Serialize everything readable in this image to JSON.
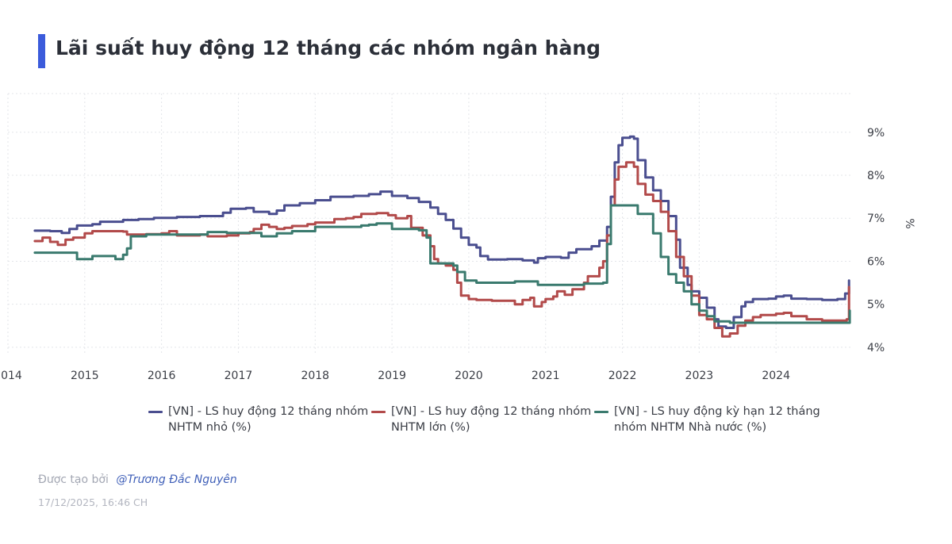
{
  "title": "Lãi suất huy động 12 tháng các nhóm ngân hàng",
  "accent_color": "#3b5bdb",
  "credit": {
    "prefix": "Được tạo bởi",
    "author": "@Trương Đắc Nguyên"
  },
  "timestamp": "17/12/2025, 16:46 CH",
  "chart_data": {
    "type": "line",
    "title": "Lãi suất huy động 12 tháng các nhóm ngân hàng",
    "xlabel": "",
    "ylabel": "%",
    "x_ticks": [
      "2014",
      "2015",
      "2016",
      "2017",
      "2018",
      "2019",
      "2020",
      "2021",
      "2022",
      "2023",
      "2024"
    ],
    "y_ticks": [
      "4%",
      "5%",
      "6%",
      "7%",
      "8%",
      "9%"
    ],
    "xlim": [
      2014.0,
      2025.0
    ],
    "ylim": [
      3.85,
      9.9
    ],
    "grid": true,
    "legend_position": "bottom",
    "series": [
      {
        "name": "[VN] - LS huy động 12 tháng nhóm NHTM nhỏ (%)",
        "color": "#4a4e8f",
        "points": [
          [
            2014.35,
            6.71
          ],
          [
            2014.55,
            6.7
          ],
          [
            2014.7,
            6.66
          ],
          [
            2014.8,
            6.75
          ],
          [
            2014.9,
            6.83
          ],
          [
            2015.1,
            6.86
          ],
          [
            2015.2,
            6.92
          ],
          [
            2015.5,
            6.96
          ],
          [
            2015.7,
            6.98
          ],
          [
            2015.9,
            7.01
          ],
          [
            2016.2,
            7.03
          ],
          [
            2016.5,
            7.05
          ],
          [
            2016.8,
            7.13
          ],
          [
            2016.9,
            7.22
          ],
          [
            2017.1,
            7.24
          ],
          [
            2017.2,
            7.15
          ],
          [
            2017.4,
            7.1
          ],
          [
            2017.5,
            7.18
          ],
          [
            2017.6,
            7.3
          ],
          [
            2017.8,
            7.35
          ],
          [
            2018.0,
            7.42
          ],
          [
            2018.2,
            7.5
          ],
          [
            2018.5,
            7.52
          ],
          [
            2018.7,
            7.56
          ],
          [
            2018.85,
            7.62
          ],
          [
            2019.0,
            7.52
          ],
          [
            2019.2,
            7.47
          ],
          [
            2019.35,
            7.38
          ],
          [
            2019.5,
            7.25
          ],
          [
            2019.6,
            7.1
          ],
          [
            2019.7,
            6.96
          ],
          [
            2019.8,
            6.76
          ],
          [
            2019.9,
            6.55
          ],
          [
            2020.0,
            6.38
          ],
          [
            2020.1,
            6.32
          ],
          [
            2020.15,
            6.12
          ],
          [
            2020.25,
            6.04
          ],
          [
            2020.5,
            6.05
          ],
          [
            2020.7,
            6.02
          ],
          [
            2020.85,
            5.97
          ],
          [
            2020.9,
            6.07
          ],
          [
            2021.0,
            6.1
          ],
          [
            2021.2,
            6.08
          ],
          [
            2021.3,
            6.2
          ],
          [
            2021.4,
            6.28
          ],
          [
            2021.6,
            6.35
          ],
          [
            2021.7,
            6.48
          ],
          [
            2021.8,
            6.8
          ],
          [
            2021.85,
            7.5
          ],
          [
            2021.9,
            8.3
          ],
          [
            2021.95,
            8.7
          ],
          [
            2022.0,
            8.87
          ],
          [
            2022.1,
            8.9
          ],
          [
            2022.15,
            8.85
          ],
          [
            2022.2,
            8.35
          ],
          [
            2022.3,
            7.95
          ],
          [
            2022.4,
            7.65
          ],
          [
            2022.5,
            7.4
          ],
          [
            2022.6,
            7.05
          ],
          [
            2022.7,
            6.5
          ],
          [
            2022.75,
            5.85
          ],
          [
            2022.85,
            5.45
          ],
          [
            2022.9,
            5.3
          ],
          [
            2023.0,
            5.15
          ],
          [
            2023.1,
            4.92
          ],
          [
            2023.2,
            4.65
          ],
          [
            2023.25,
            4.48
          ],
          [
            2023.35,
            4.45
          ],
          [
            2023.45,
            4.7
          ],
          [
            2023.55,
            4.95
          ],
          [
            2023.6,
            5.05
          ],
          [
            2023.7,
            5.12
          ],
          [
            2023.9,
            5.13
          ],
          [
            2024.0,
            5.18
          ],
          [
            2024.1,
            5.2
          ],
          [
            2024.2,
            5.13
          ],
          [
            2024.4,
            5.12
          ],
          [
            2024.6,
            5.1
          ],
          [
            2024.8,
            5.12
          ],
          [
            2024.9,
            5.25
          ],
          [
            2024.95,
            5.55
          ]
        ]
      },
      {
        "name": "[VN] - LS huy động 12 tháng nhóm NHTM lớn (%)",
        "color": "#b24a4a",
        "points": [
          [
            2014.35,
            6.47
          ],
          [
            2014.45,
            6.55
          ],
          [
            2014.55,
            6.45
          ],
          [
            2014.65,
            6.38
          ],
          [
            2014.75,
            6.5
          ],
          [
            2014.85,
            6.55
          ],
          [
            2014.95,
            6.55
          ],
          [
            2015.0,
            6.65
          ],
          [
            2015.1,
            6.7
          ],
          [
            2015.5,
            6.69
          ],
          [
            2015.55,
            6.62
          ],
          [
            2015.8,
            6.63
          ],
          [
            2016.0,
            6.65
          ],
          [
            2016.1,
            6.7
          ],
          [
            2016.2,
            6.6
          ],
          [
            2016.5,
            6.62
          ],
          [
            2016.6,
            6.58
          ],
          [
            2016.85,
            6.6
          ],
          [
            2017.0,
            6.65
          ],
          [
            2017.15,
            6.68
          ],
          [
            2017.2,
            6.75
          ],
          [
            2017.3,
            6.85
          ],
          [
            2017.4,
            6.8
          ],
          [
            2017.5,
            6.75
          ],
          [
            2017.6,
            6.78
          ],
          [
            2017.7,
            6.82
          ],
          [
            2017.9,
            6.86
          ],
          [
            2018.0,
            6.9
          ],
          [
            2018.2,
            6.9
          ],
          [
            2018.25,
            6.98
          ],
          [
            2018.4,
            7.0
          ],
          [
            2018.5,
            7.03
          ],
          [
            2018.6,
            7.1
          ],
          [
            2018.8,
            7.12
          ],
          [
            2018.95,
            7.07
          ],
          [
            2019.05,
            7.0
          ],
          [
            2019.2,
            7.05
          ],
          [
            2019.25,
            6.78
          ],
          [
            2019.4,
            6.6
          ],
          [
            2019.5,
            6.35
          ],
          [
            2019.55,
            6.05
          ],
          [
            2019.6,
            5.95
          ],
          [
            2019.7,
            5.9
          ],
          [
            2019.8,
            5.8
          ],
          [
            2019.85,
            5.5
          ],
          [
            2019.9,
            5.2
          ],
          [
            2020.0,
            5.12
          ],
          [
            2020.1,
            5.1
          ],
          [
            2020.3,
            5.08
          ],
          [
            2020.6,
            5.0
          ],
          [
            2020.7,
            5.1
          ],
          [
            2020.8,
            5.15
          ],
          [
            2020.85,
            4.95
          ],
          [
            2020.95,
            5.05
          ],
          [
            2021.0,
            5.12
          ],
          [
            2021.1,
            5.18
          ],
          [
            2021.15,
            5.3
          ],
          [
            2021.25,
            5.22
          ],
          [
            2021.35,
            5.35
          ],
          [
            2021.5,
            5.5
          ],
          [
            2021.55,
            5.65
          ],
          [
            2021.7,
            5.85
          ],
          [
            2021.75,
            6.0
          ],
          [
            2021.8,
            6.6
          ],
          [
            2021.85,
            7.3
          ],
          [
            2021.9,
            7.9
          ],
          [
            2021.95,
            8.2
          ],
          [
            2022.05,
            8.3
          ],
          [
            2022.15,
            8.2
          ],
          [
            2022.2,
            7.8
          ],
          [
            2022.3,
            7.55
          ],
          [
            2022.4,
            7.4
          ],
          [
            2022.5,
            7.15
          ],
          [
            2022.6,
            6.7
          ],
          [
            2022.7,
            6.1
          ],
          [
            2022.8,
            5.65
          ],
          [
            2022.9,
            5.2
          ],
          [
            2023.0,
            4.75
          ],
          [
            2023.1,
            4.65
          ],
          [
            2023.2,
            4.45
          ],
          [
            2023.3,
            4.25
          ],
          [
            2023.4,
            4.32
          ],
          [
            2023.5,
            4.5
          ],
          [
            2023.6,
            4.62
          ],
          [
            2023.7,
            4.7
          ],
          [
            2023.8,
            4.75
          ],
          [
            2024.0,
            4.78
          ],
          [
            2024.1,
            4.8
          ],
          [
            2024.2,
            4.72
          ],
          [
            2024.4,
            4.65
          ],
          [
            2024.6,
            4.62
          ],
          [
            2024.8,
            4.62
          ],
          [
            2024.92,
            4.65
          ],
          [
            2024.95,
            5.4
          ]
        ]
      },
      {
        "name": "[VN] - LS huy động kỳ hạn 12 tháng nhóm NHTM Nhà nước (%)",
        "color": "#3a7a6e",
        "points": [
          [
            2014.35,
            6.2
          ],
          [
            2014.85,
            6.2
          ],
          [
            2014.9,
            6.05
          ],
          [
            2015.0,
            6.05
          ],
          [
            2015.1,
            6.12
          ],
          [
            2015.4,
            6.05
          ],
          [
            2015.5,
            6.15
          ],
          [
            2015.55,
            6.3
          ],
          [
            2015.6,
            6.58
          ],
          [
            2015.8,
            6.62
          ],
          [
            2016.5,
            6.62
          ],
          [
            2016.6,
            6.68
          ],
          [
            2016.85,
            6.66
          ],
          [
            2017.3,
            6.58
          ],
          [
            2017.5,
            6.65
          ],
          [
            2017.7,
            6.7
          ],
          [
            2018.0,
            6.8
          ],
          [
            2018.6,
            6.83
          ],
          [
            2018.7,
            6.85
          ],
          [
            2018.8,
            6.88
          ],
          [
            2019.0,
            6.75
          ],
          [
            2019.35,
            6.72
          ],
          [
            2019.45,
            6.55
          ],
          [
            2019.5,
            5.95
          ],
          [
            2019.8,
            5.9
          ],
          [
            2019.85,
            5.75
          ],
          [
            2019.95,
            5.55
          ],
          [
            2020.1,
            5.5
          ],
          [
            2020.6,
            5.53
          ],
          [
            2020.9,
            5.45
          ],
          [
            2021.5,
            5.48
          ],
          [
            2021.75,
            5.5
          ],
          [
            2021.8,
            6.4
          ],
          [
            2021.85,
            7.3
          ],
          [
            2022.15,
            7.3
          ],
          [
            2022.2,
            7.1
          ],
          [
            2022.35,
            7.1
          ],
          [
            2022.4,
            6.65
          ],
          [
            2022.5,
            6.1
          ],
          [
            2022.6,
            5.7
          ],
          [
            2022.7,
            5.5
          ],
          [
            2022.8,
            5.3
          ],
          [
            2022.9,
            5.0
          ],
          [
            2023.0,
            4.85
          ],
          [
            2023.1,
            4.72
          ],
          [
            2023.2,
            4.6
          ],
          [
            2023.4,
            4.57
          ],
          [
            2023.8,
            4.57
          ],
          [
            2024.95,
            4.57
          ],
          [
            2024.96,
            4.85
          ]
        ]
      }
    ]
  }
}
